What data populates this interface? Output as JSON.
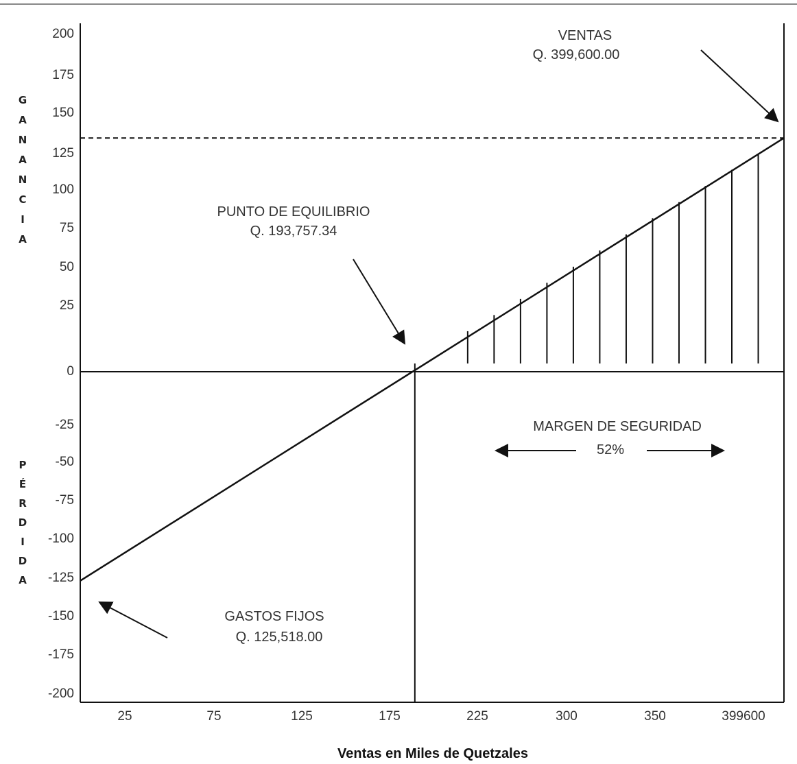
{
  "chart_data": {
    "type": "line",
    "title": "",
    "xlabel": "Ventas en Miles de Quetzales",
    "ylabel_top": [
      "G",
      "A",
      "N",
      "A",
      "N",
      "C",
      "I",
      "A"
    ],
    "ylabel_bottom": [
      "P",
      "É",
      "R",
      "D",
      "I",
      "D",
      "A"
    ],
    "x_ticks": [
      "25",
      "75",
      "125",
      "175",
      "225",
      "300",
      "350",
      "399600"
    ],
    "y_ticks": [
      "200",
      "175",
      "150",
      "125",
      "100",
      "75",
      "50",
      "25",
      "0",
      "-25",
      "-50",
      "-75",
      "-100",
      "-125",
      "-150",
      "-175",
      "-200"
    ],
    "ylim": [
      -200,
      200
    ],
    "series": [
      {
        "x": [
          0,
          190,
          399.6
        ],
        "y": [
          -132,
          0,
          137
        ]
      }
    ],
    "sales_level": 137,
    "hatch_x": [
      220,
      235,
      250,
      265,
      280,
      295,
      310,
      325,
      340,
      355,
      370,
      385,
      399.6
    ],
    "annotations": {
      "ventas": {
        "title": "VENTAS",
        "value": "Q. 399,600.00"
      },
      "equilibrio": {
        "title": "PUNTO DE EQUILIBRIO",
        "value": "Q. 193,757.34"
      },
      "margen": {
        "title": "MARGEN DE SEGURIDAD",
        "value": "52%"
      },
      "gastos": {
        "title": "GASTOS FIJOS",
        "value": "Q. 125,518.00"
      }
    }
  }
}
